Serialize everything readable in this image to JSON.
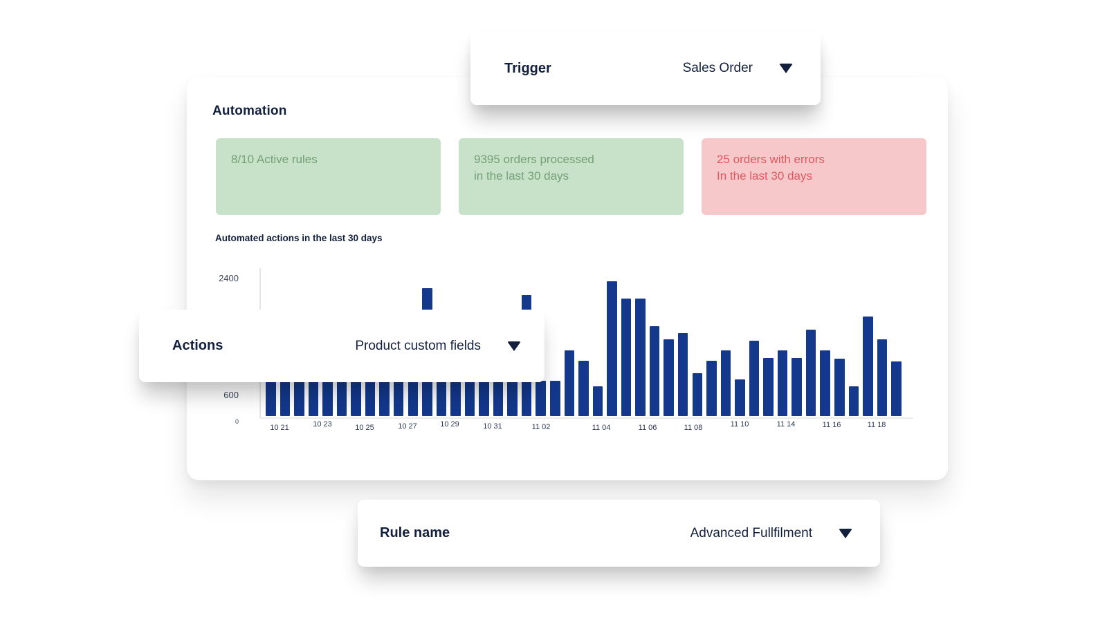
{
  "trigger_card": {
    "label": "Trigger",
    "value": "Sales Order"
  },
  "actions_card": {
    "label": "Actions",
    "value": "Product custom fields"
  },
  "rule_card": {
    "label": "Rule name",
    "value": "Advanced Fullfilment"
  },
  "automation": {
    "title": "Automation",
    "stats": [
      {
        "type": "success",
        "line1": "8/10 Active rules",
        "line2": ""
      },
      {
        "type": "success",
        "line1": "9395 orders processed",
        "line2": "in the last 30 days"
      },
      {
        "type": "error",
        "line1": "25 orders with errors",
        "line2": "In the last 30 days"
      }
    ]
  },
  "chart_data": {
    "type": "bar",
    "title": "Automated actions in the last 30 days",
    "ylabel": "",
    "xlabel": "",
    "ylim": [
      0,
      2400
    ],
    "y_tick_labels": [
      "2400",
      "600",
      "0"
    ],
    "grid": false,
    "legend": "none",
    "bar_color": "#13388c",
    "x_tick_labels": [
      "10 21",
      "10 23",
      "10 25",
      "10 27",
      "10 29",
      "10 31",
      "11 02",
      "11 04",
      "11 06",
      "11 08",
      "11 10",
      "11 14",
      "11 16",
      "11 18"
    ],
    "values": [
      620,
      620,
      620,
      620,
      620,
      620,
      620,
      620,
      620,
      620,
      620,
      2230,
      620,
      620,
      620,
      620,
      620,
      620,
      2110,
      620,
      620,
      1140,
      960,
      520,
      2350,
      2050,
      2050,
      1570,
      1340,
      1450,
      750,
      960,
      1140,
      640,
      1310,
      1010,
      1140,
      1010,
      1510,
      1140,
      1000,
      520,
      1740,
      1340,
      950
    ]
  },
  "colors": {
    "accent_navy": "#121f3d",
    "bar_blue": "#13388c",
    "success_bg": "#c7e2c8",
    "success_text": "#74a078",
    "error_bg": "#f6c8ca",
    "error_text": "#e0585f"
  }
}
